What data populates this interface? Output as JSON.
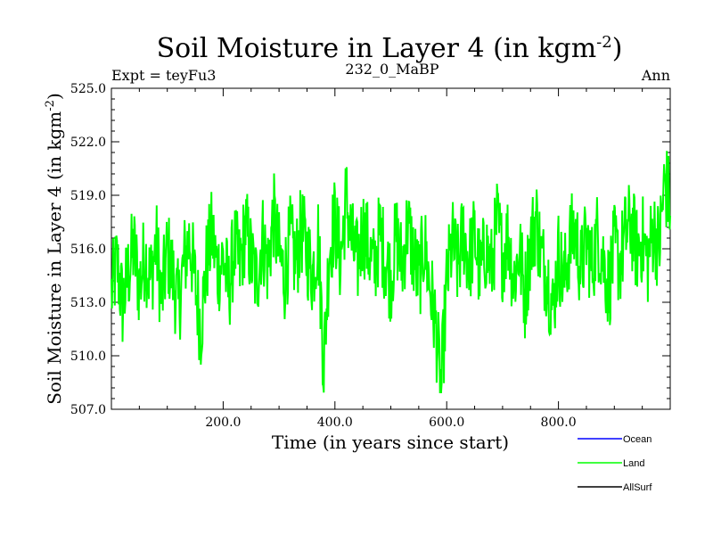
{
  "chart_data": {
    "type": "line",
    "title": "Soil Moisture in Layer 4 (in kgm",
    "title_sup": "-2",
    "title_close": ")",
    "subtitle_left": "Expt = teyFu3",
    "subtitle_center": "232_0_MaBP",
    "subtitle_right": "Ann",
    "xlabel": "Time (in years since start)",
    "ylabel": "Soil Moisture in Layer 4 (in kgm",
    "ylabel_sup": "-2",
    "ylabel_close": ")",
    "xlim": [
      0,
      1000
    ],
    "ylim": [
      507.0,
      525.0
    ],
    "xticks": [
      200,
      400,
      600,
      800
    ],
    "xtick_labels": [
      "200.0",
      "400.0",
      "600.0",
      "800.0"
    ],
    "yticks": [
      507.0,
      510.0,
      513.0,
      516.0,
      519.0,
      522.0,
      525.0
    ],
    "ytick_labels": [
      "507.0",
      "510.0",
      "513.0",
      "516.0",
      "519.0",
      "522.0",
      "525.0"
    ],
    "legend_position": "bottom-right, below plot",
    "series": [
      {
        "name": "Ocean",
        "color": "#0000ff",
        "values": []
      },
      {
        "name": "Land",
        "color": "#00ff00",
        "summary": "annual values fluctuating ~510-521, mean ~515.8; min ~508.0 near year 590; max ~522.3 near year 990",
        "values": [
          [
            0,
            513.5
          ],
          [
            10,
            515.2
          ],
          [
            20,
            512.8
          ],
          [
            30,
            514.6
          ],
          [
            40,
            516.1
          ],
          [
            50,
            513.9
          ],
          [
            60,
            515.7
          ],
          [
            70,
            514.2
          ],
          [
            80,
            516.4
          ],
          [
            90,
            513.1
          ],
          [
            100,
            515.9
          ],
          [
            110,
            514.5
          ],
          [
            120,
            512.7
          ],
          [
            130,
            515.3
          ],
          [
            140,
            516.6
          ],
          [
            150,
            514.0
          ],
          [
            160,
            511.6
          ],
          [
            170,
            515.1
          ],
          [
            180,
            516.9
          ],
          [
            190,
            514.7
          ],
          [
            200,
            515.5
          ],
          [
            210,
            513.6
          ],
          [
            220,
            516.2
          ],
          [
            230,
            514.9
          ],
          [
            240,
            517.3
          ],
          [
            250,
            515.4
          ],
          [
            260,
            514.1
          ],
          [
            270,
            516.8
          ],
          [
            280,
            515.0
          ],
          [
            290,
            517.9
          ],
          [
            300,
            515.6
          ],
          [
            310,
            514.4
          ],
          [
            320,
            516.5
          ],
          [
            330,
            515.2
          ],
          [
            340,
            517.1
          ],
          [
            350,
            515.8
          ],
          [
            360,
            514.6
          ],
          [
            370,
            516.7
          ],
          [
            380,
            509.5
          ],
          [
            390,
            516.0
          ],
          [
            400,
            517.6
          ],
          [
            410,
            515.3
          ],
          [
            420,
            518.9
          ],
          [
            430,
            516.4
          ],
          [
            440,
            515.1
          ],
          [
            450,
            517.2
          ],
          [
            460,
            516.0
          ],
          [
            470,
            514.8
          ],
          [
            480,
            516.9
          ],
          [
            490,
            515.5
          ],
          [
            500,
            514.3
          ],
          [
            510,
            516.8
          ],
          [
            520,
            515.0
          ],
          [
            530,
            517.4
          ],
          [
            540,
            515.7
          ],
          [
            550,
            514.2
          ],
          [
            560,
            516.3
          ],
          [
            570,
            513.9
          ],
          [
            580,
            511.8
          ],
          [
            590,
            508.0
          ],
          [
            600,
            514.0
          ],
          [
            610,
            516.4
          ],
          [
            620,
            514.9
          ],
          [
            630,
            517.0
          ],
          [
            640,
            515.2
          ],
          [
            650,
            516.7
          ],
          [
            660,
            514.5
          ],
          [
            670,
            516.1
          ],
          [
            680,
            514.8
          ],
          [
            690,
            517.5
          ],
          [
            700,
            515.6
          ],
          [
            710,
            516.8
          ],
          [
            720,
            514.2
          ],
          [
            730,
            515.9
          ],
          [
            740,
            513.4
          ],
          [
            750,
            516.2
          ],
          [
            760,
            517.8
          ],
          [
            770,
            515.3
          ],
          [
            780,
            514.6
          ],
          [
            790,
            512.5
          ],
          [
            800,
            515.7
          ],
          [
            810,
            514.1
          ],
          [
            820,
            516.3
          ],
          [
            830,
            517.1
          ],
          [
            840,
            514.8
          ],
          [
            850,
            516.5
          ],
          [
            860,
            515.0
          ],
          [
            870,
            516.9
          ],
          [
            880,
            515.4
          ],
          [
            890,
            513.8
          ],
          [
            900,
            516.0
          ],
          [
            910,
            515.2
          ],
          [
            920,
            516.8
          ],
          [
            930,
            517.4
          ],
          [
            940,
            515.9
          ],
          [
            950,
            516.6
          ],
          [
            960,
            515.3
          ],
          [
            970,
            517.2
          ],
          [
            980,
            516.0
          ],
          [
            990,
            519.8
          ],
          [
            1000,
            518.5
          ]
        ]
      },
      {
        "name": "AllSurf",
        "color": "#000000",
        "values": []
      }
    ]
  }
}
